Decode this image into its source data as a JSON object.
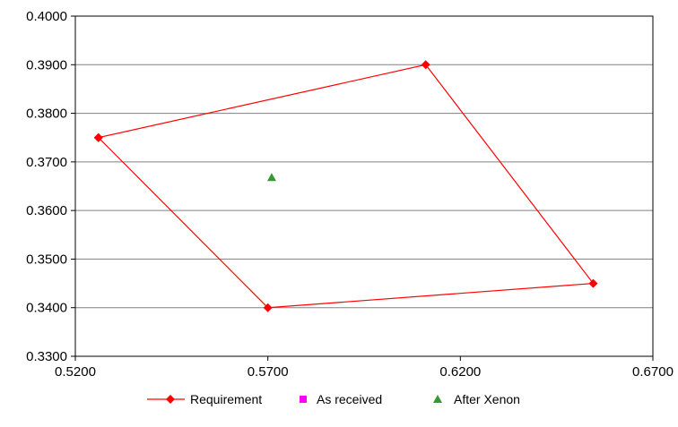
{
  "chart_data": {
    "type": "scatter",
    "xlim": [
      0.52,
      0.67
    ],
    "ylim": [
      0.33,
      0.4
    ],
    "x_ticks": [
      "0.5200",
      "0.5700",
      "0.6200",
      "0.6700"
    ],
    "y_ticks": [
      "0.3300",
      "0.3400",
      "0.3500",
      "0.3600",
      "0.3700",
      "0.3800",
      "0.3900",
      "0.4000"
    ],
    "grid": "horizontal",
    "legend_position": "bottom",
    "series": [
      {
        "name": "Requirement",
        "color": "#ff0000",
        "marker": "diamond",
        "line": true,
        "points": [
          [
            0.526,
            0.375
          ],
          [
            0.611,
            0.39
          ],
          [
            0.6545,
            0.345
          ],
          [
            0.57,
            0.34
          ],
          [
            0.526,
            0.375
          ]
        ]
      },
      {
        "name": "As received",
        "color": "#ff00ff",
        "marker": "square",
        "line": false,
        "points": []
      },
      {
        "name": "After Xenon",
        "color": "#339933",
        "marker": "triangle",
        "line": false,
        "points": [
          [
            0.571,
            0.3668
          ]
        ]
      }
    ]
  }
}
